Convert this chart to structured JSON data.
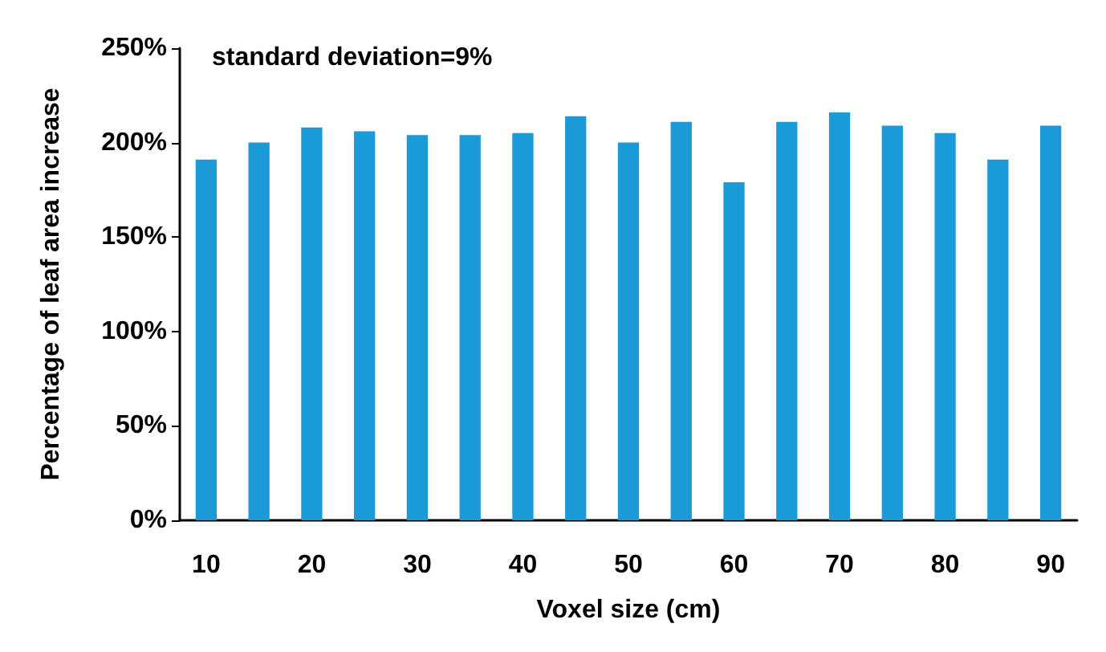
{
  "chart_data": {
    "type": "bar",
    "xlabel": "Voxel size (cm)",
    "ylabel": "Percentage of leaf area increase",
    "annotations": [
      "standard deviation=9%"
    ],
    "categories": [
      "10",
      null,
      "20",
      null,
      "30",
      null,
      "40",
      null,
      "50",
      null,
      "60",
      null,
      "70",
      null,
      "80",
      null,
      "90"
    ],
    "values": [
      191,
      200,
      208,
      206,
      204,
      204,
      205,
      214,
      200,
      211,
      179,
      211,
      216,
      209,
      205,
      191,
      209
    ],
    "color": "#1a9bd7",
    "ylim": [
      0,
      250
    ],
    "yticks": [
      {
        "value": 0,
        "label": "0%"
      },
      {
        "value": 50,
        "label": "50%"
      },
      {
        "value": 100,
        "label": "100%"
      },
      {
        "value": 150,
        "label": "150%"
      },
      {
        "value": 200,
        "label": "200%"
      },
      {
        "value": 250,
        "label": "250%"
      }
    ],
    "grid": false
  }
}
